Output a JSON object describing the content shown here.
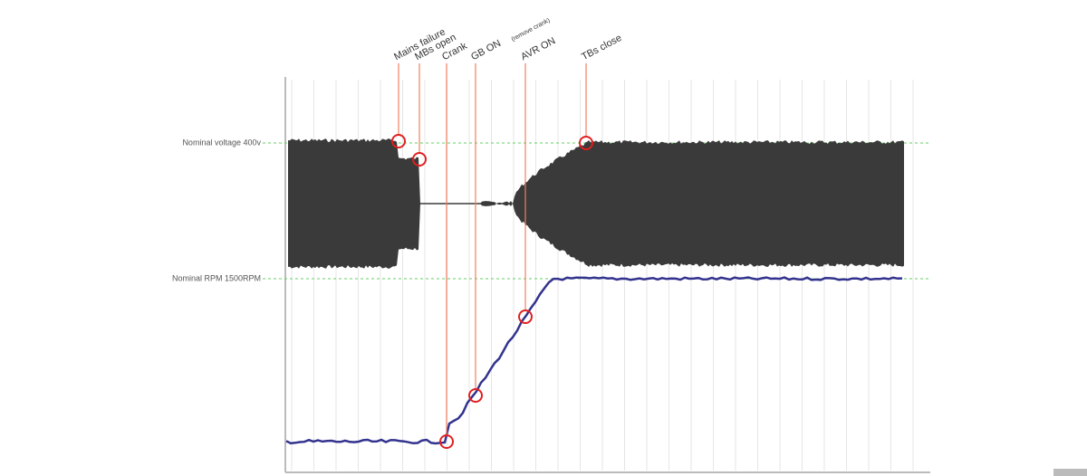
{
  "reference_lines": [
    {
      "label": "Nominal voltage 400v"
    },
    {
      "label": "Nominal RPM 1500RPM"
    }
  ],
  "events": [
    {
      "label": "Mains failure"
    },
    {
      "label": "MBs open"
    },
    {
      "label": "Crank"
    },
    {
      "label": "GB ON",
      "note": "(remove crank)"
    },
    {
      "label": "AVR ON"
    },
    {
      "label": "TBs close"
    }
  ]
}
